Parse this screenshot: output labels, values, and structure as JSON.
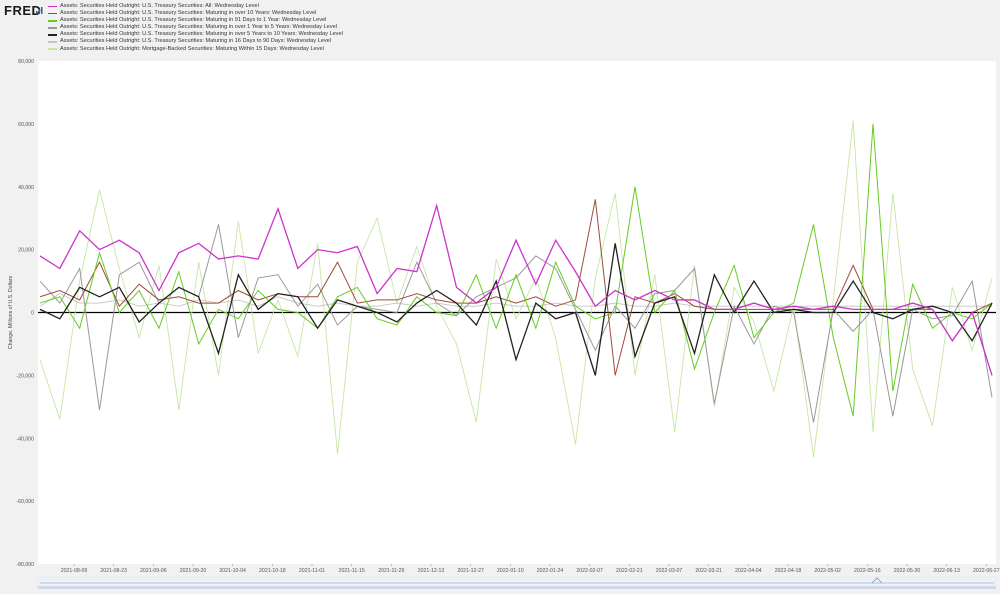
{
  "logo": {
    "text": "FRED"
  },
  "colors": {
    "background": "#ffffff",
    "page": "#f1f1f1",
    "zero_line": "#000000",
    "grid": "#e6e6e6",
    "navigator": "#cfd9e8"
  },
  "chart_data": {
    "type": "line",
    "xlabel": "",
    "ylabel": "Change, Millions of U.S. Dollars",
    "ylim": [
      -80000,
      80000
    ],
    "yticks": [
      80000,
      60000,
      40000,
      20000,
      0,
      -20000,
      -40000,
      -60000,
      -80000
    ],
    "ytick_labels": [
      "80,000",
      "60,000",
      "40,000",
      "20,000",
      "0",
      "-20,000",
      "-40,000",
      "-60,000",
      "-80,000"
    ],
    "xtick_labels": [
      "2021-08-09",
      "2021-08-23",
      "2021-09-06",
      "2021-09-20",
      "2021-10-04",
      "2021-10-18",
      "2021-11-01",
      "2021-11-15",
      "2021-11-29",
      "2021-12-13",
      "2021-12-27",
      "2022-01-10",
      "2022-01-24",
      "2022-02-07",
      "2022-02-21",
      "2022-03-07",
      "2022-03-21",
      "2022-04-04",
      "2022-04-18",
      "2022-05-02",
      "2022-05-16",
      "2022-05-30",
      "2022-06-13",
      "2022-06-27"
    ],
    "grid": false,
    "legend_position": "top-left",
    "dates": [
      "2021-07-28",
      "2021-08-04",
      "2021-08-11",
      "2021-08-18",
      "2021-08-25",
      "2021-09-01",
      "2021-09-08",
      "2021-09-15",
      "2021-09-22",
      "2021-09-29",
      "2021-10-06",
      "2021-10-13",
      "2021-10-20",
      "2021-10-27",
      "2021-11-03",
      "2021-11-10",
      "2021-11-17",
      "2021-11-24",
      "2021-12-01",
      "2021-12-08",
      "2021-12-15",
      "2021-12-22",
      "2021-12-29",
      "2022-01-05",
      "2022-01-12",
      "2022-01-19",
      "2022-01-26",
      "2022-02-02",
      "2022-02-09",
      "2022-02-16",
      "2022-02-23",
      "2022-03-02",
      "2022-03-09",
      "2022-03-16",
      "2022-03-23",
      "2022-03-30",
      "2022-04-06",
      "2022-04-13",
      "2022-04-20",
      "2022-04-27",
      "2022-05-04",
      "2022-05-11",
      "2022-05-18",
      "2022-05-25",
      "2022-06-01",
      "2022-06-08",
      "2022-06-15",
      "2022-06-22",
      "2022-06-29"
    ],
    "series": [
      {
        "name": "Assets: Securities Held Outright: U.S. Treasury Securities: All: Wednesday Level",
        "color": "#cc33cc",
        "width": 1.3,
        "values": [
          18000,
          14000,
          26000,
          20000,
          23000,
          19000,
          7000,
          19000,
          22000,
          17000,
          18000,
          17000,
          33000,
          14000,
          20000,
          19000,
          21000,
          6000,
          14000,
          13000,
          34000,
          8000,
          3000,
          8000,
          23000,
          9000,
          23000,
          13000,
          2000,
          7000,
          4000,
          7000,
          4000,
          4000,
          1000,
          1000,
          3000,
          1000,
          2000,
          1000,
          2000,
          1000,
          1000,
          1000,
          3000,
          1000,
          -9000,
          0,
          -20000
        ]
      },
      {
        "name": "Assets: Securities Held Outright: U.S. Treasury Securities: Maturing in over 10 Years: Wednesday Level",
        "color": "#a04a3a",
        "width": 1.0,
        "values": [
          5000,
          7000,
          4000,
          16000,
          2000,
          9000,
          4000,
          5000,
          3000,
          3000,
          7000,
          4000,
          6000,
          5000,
          5000,
          16000,
          3000,
          4000,
          4000,
          6000,
          4000,
          3000,
          3000,
          5000,
          3000,
          5000,
          2000,
          4000,
          36000,
          -20000,
          5000,
          3000,
          6000,
          2000,
          1000,
          1000,
          1000,
          1000,
          1000,
          1000,
          1000,
          15000,
          1000,
          1000,
          1000,
          1000,
          -9000,
          0,
          3000
        ]
      },
      {
        "name": "Assets: Securities Held Outright: U.S. Treasury Securities: Maturing in 91 Days to 1 Year: Wednesday Level",
        "color": "#66cc22",
        "width": 1.0,
        "values": [
          3000,
          5000,
          -5000,
          19000,
          0,
          7000,
          -5000,
          13000,
          -10000,
          1000,
          -2000,
          7000,
          1000,
          0,
          -5000,
          5000,
          8000,
          -2000,
          -4000,
          5000,
          0,
          -1000,
          12000,
          -5000,
          12000,
          -5000,
          16000,
          2000,
          -2000,
          0,
          40000,
          0,
          7000,
          -18000,
          0,
          15000,
          -8000,
          0,
          3000,
          28000,
          -8000,
          -33000,
          60000,
          -25000,
          9000,
          -5000,
          0,
          -2000,
          3000
        ]
      },
      {
        "name": "Assets: Securities Held Outright: U.S. Treasury Securities: Maturing in over 1 Year to 5 Years: Wednesday Level",
        "color": "#999999",
        "width": 1.0,
        "values": [
          10000,
          3000,
          14000,
          -31000,
          12000,
          16000,
          3000,
          8000,
          5000,
          28000,
          -8000,
          11000,
          12000,
          2000,
          9000,
          -4000,
          2000,
          1000,
          0,
          16000,
          3000,
          -1000,
          5000,
          8000,
          11000,
          18000,
          14000,
          1000,
          -12000,
          2000,
          -5000,
          6000,
          7000,
          14000,
          -29000,
          2000,
          -10000,
          2000,
          0,
          -35000,
          1000,
          -6000,
          1000,
          -33000,
          1000,
          -2000,
          -1000,
          10000,
          -27000
        ]
      },
      {
        "name": "Assets: Securities Held Outright: U.S. Treasury Securities: Maturing in over 5 Years to 10 Years: Wednesday Level",
        "color": "#222222",
        "width": 1.3,
        "values": [
          1000,
          -2000,
          8000,
          5000,
          8000,
          -3000,
          3000,
          8000,
          5000,
          -13000,
          12000,
          1000,
          6000,
          5000,
          -5000,
          4000,
          2000,
          0,
          -3000,
          3000,
          7000,
          3000,
          -4000,
          10000,
          -15000,
          3000,
          -2000,
          0,
          -20000,
          22000,
          -14000,
          3000,
          5000,
          -13000,
          12000,
          0,
          10000,
          0,
          1000,
          0,
          0,
          10000,
          0,
          -2000,
          1000,
          2000,
          0,
          -9000,
          3000
        ]
      },
      {
        "name": "Assets: Securities Held Outright: U.S. Treasury Securities: Maturing in 16 Days to 90 Days: Wednesday Level",
        "color": "#c4c4c4",
        "width": 0.9,
        "values": [
          2000,
          6000,
          3000,
          3000,
          4000,
          2000,
          3000,
          2000,
          4000,
          3000,
          4000,
          2000,
          5000,
          3000,
          2000,
          3000,
          2000,
          2000,
          3000,
          2000,
          3000,
          2000,
          2000,
          3000,
          2000,
          2000,
          3000,
          2000,
          2000,
          3000,
          2000,
          2000,
          3000,
          2000,
          2000,
          2000,
          2000,
          2000,
          2000,
          2000,
          2000,
          2000,
          2000,
          2000,
          2000,
          2000,
          2000,
          2000,
          2000
        ]
      },
      {
        "name": "Assets: Securities Held Outright: Mortgage-Backed Securities: Maturing Within 15 Days: Wednesday Level",
        "color": "#c8e6a4",
        "width": 0.9,
        "values": [
          -15000,
          -34000,
          10000,
          39000,
          14000,
          -8000,
          15000,
          -31000,
          16000,
          -20000,
          29000,
          -13000,
          4000,
          -14000,
          22000,
          -45000,
          16000,
          30000,
          3000,
          21000,
          2000,
          -10000,
          -35000,
          17000,
          -2000,
          11000,
          -8000,
          -42000,
          11000,
          38000,
          -20000,
          12000,
          -38000,
          15000,
          -30000,
          8000,
          -3000,
          -25000,
          2000,
          -46000,
          4000,
          61000,
          -38000,
          38000,
          -18000,
          -36000,
          8000,
          -12000,
          11000
        ]
      }
    ]
  }
}
